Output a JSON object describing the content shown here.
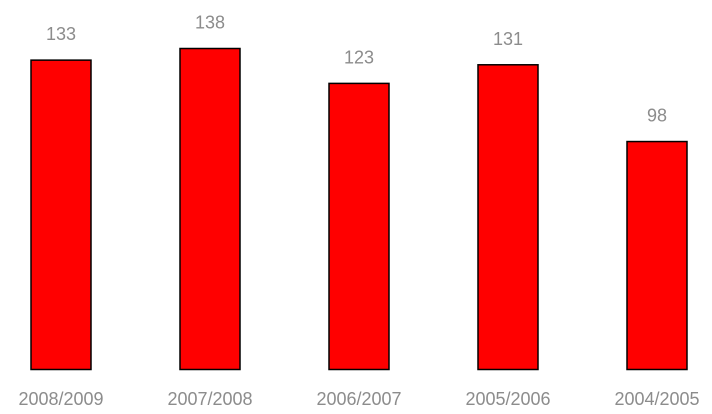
{
  "chart_data": {
    "type": "bar",
    "categories": [
      "2008/2009",
      "2007/2008",
      "2006/2007",
      "2005/2006",
      "2004/2005"
    ],
    "values": [
      133,
      138,
      123,
      131,
      98
    ],
    "title": "",
    "xlabel": "",
    "ylabel": "",
    "ylim": [
      0,
      138
    ],
    "bar_color": "#ff0000",
    "bar_outline_color": "#000000",
    "label_color": "#8c8c8c",
    "grid": false,
    "legend": "none"
  }
}
